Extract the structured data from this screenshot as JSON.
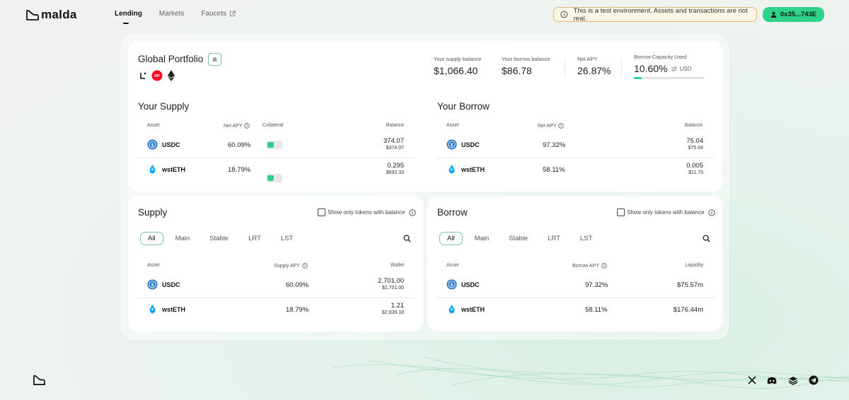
{
  "brand": {
    "name": "malda"
  },
  "nav": {
    "items": [
      {
        "label": "Lending",
        "active": true
      },
      {
        "label": "Markets",
        "active": false
      },
      {
        "label": "Faucets",
        "active": false,
        "external": true
      }
    ]
  },
  "banner": {
    "text": "This is a test environment. Assets and transactions are not real."
  },
  "wallet": {
    "address": "0x35...743E"
  },
  "portfolio": {
    "title": "Global Portfolio",
    "chain_icons": [
      "linea-icon",
      "optimism-icon",
      "ethereum-icon"
    ],
    "op_badge": "OP",
    "stats": {
      "supply_label": "Your supply balance",
      "supply_value": "$1,066.40",
      "borrow_label": "Your borrow balance",
      "borrow_value": "$86.78",
      "apy_label": "Net APY",
      "apy_value": "26.87%",
      "capacity_label": "Borrow Capacity Used",
      "capacity_value": "10.60%",
      "capacity_unit": "USD",
      "capacity_fraction": 0.106
    }
  },
  "your_supply": {
    "title": "Your Supply",
    "headers": {
      "asset": "Asset",
      "apy": "Net APY",
      "collateral": "Collateral",
      "balance": "Balance"
    },
    "rows": [
      {
        "asset": "USDC",
        "apy": "60.09%",
        "balance": "374.07",
        "balance_usd": "$374.07"
      },
      {
        "asset": "wstETH",
        "apy": "18.79%",
        "balance": "0.295",
        "balance_usd": "$692.33"
      }
    ]
  },
  "your_borrow": {
    "title": "Your Borrow",
    "headers": {
      "asset": "Asset",
      "apy": "Net APY",
      "balance": "Balance"
    },
    "rows": [
      {
        "asset": "USDC",
        "apy": "97.32%",
        "balance": "75.04",
        "balance_usd": "$75.04"
      },
      {
        "asset": "wstETH",
        "apy": "58.11%",
        "balance": "0.005",
        "balance_usd": "$11.75"
      }
    ]
  },
  "supply_market": {
    "title": "Supply",
    "filter_label": "Show only tokens with balance",
    "tabs": [
      "All",
      "Main",
      "Stable",
      "LRT",
      "LST"
    ],
    "headers": {
      "asset": "Asset",
      "apy": "Supply APY",
      "wallet": "Wallet"
    },
    "rows": [
      {
        "asset": "USDC",
        "apy": "60.09%",
        "wallet": "2,701.00",
        "wallet_usd": "$2,701.00"
      },
      {
        "asset": "wstETH",
        "apy": "18.79%",
        "wallet": "1.21",
        "wallet_usd": "$2,839.18"
      }
    ]
  },
  "borrow_market": {
    "title": "Borrow",
    "filter_label": "Show only tokens with balance",
    "tabs": [
      "All",
      "Main",
      "Stable",
      "LRT",
      "LST"
    ],
    "headers": {
      "asset": "Asset",
      "apy": "Borrow APY",
      "liquidity": "Liquidity"
    },
    "rows": [
      {
        "asset": "USDC",
        "apy": "97.32%",
        "liquidity": "$75.57m"
      },
      {
        "asset": "wstETH",
        "apy": "58.11%",
        "liquidity": "$176.44m"
      }
    ]
  },
  "footer": {
    "social_icons": [
      "x-icon",
      "discord-icon",
      "docs-stack-icon",
      "telegram-icon"
    ]
  },
  "colors": {
    "accent": "#2fd28a",
    "usdc": "#2775ca",
    "wsteth": "#00a3ff",
    "warning_border": "#e3b872"
  }
}
